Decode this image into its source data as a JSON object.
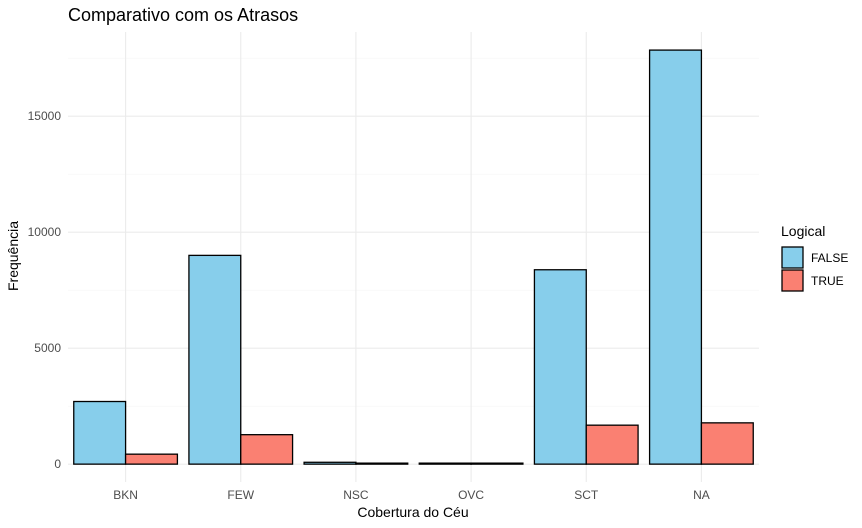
{
  "chart_data": {
    "type": "bar",
    "title": "Comparativo com os Atrasos",
    "xlabel": "Cobertura do Céu",
    "ylabel": "Frequência",
    "categories": [
      "BKN",
      "FEW",
      "NSC",
      "OVC",
      "SCT",
      "NA"
    ],
    "series": [
      {
        "name": "FALSE",
        "color": "#87ceeb",
        "values": [
          2700,
          9000,
          80,
          30,
          8380,
          17850
        ]
      },
      {
        "name": "TRUE",
        "color": "#fa8072",
        "values": [
          430,
          1270,
          10,
          10,
          1680,
          1780
        ]
      }
    ],
    "yticks": [
      0,
      5000,
      10000,
      15000
    ],
    "ylim": [
      -770,
      18630
    ],
    "legend": {
      "title": "Logical",
      "placement": "right"
    },
    "grid": true
  }
}
